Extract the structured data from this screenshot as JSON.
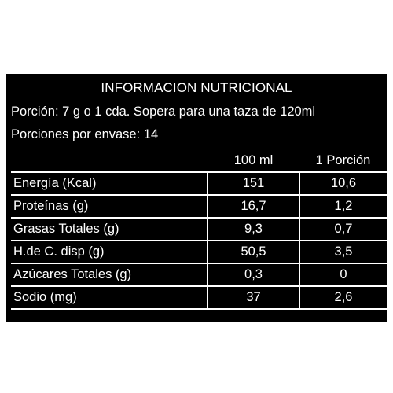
{
  "panel": {
    "title": "INFORMACION NUTRICIONAL",
    "portion_line": "Porción:  7 g o 1 cda. Sopera para una taza de 120ml",
    "servings_line": "Porciones por envase: 14"
  },
  "table": {
    "headers": [
      "",
      "100 ml",
      "1 Porción"
    ],
    "rows": [
      {
        "label": "Energía (Kcal)",
        "per100": "151",
        "perPortion": "10,6"
      },
      {
        "label": "Proteínas (g)",
        "per100": "16,7",
        "perPortion": "1,2"
      },
      {
        "label": "Grasas Totales (g)",
        "per100": "9,3",
        "perPortion": "0,7"
      },
      {
        "label": "H.de C. disp (g)",
        "per100": "50,5",
        "perPortion": "3,5"
      },
      {
        "label": "Azúcares Totales (g)",
        "per100": "0,3",
        "perPortion": "0"
      },
      {
        "label": "Sodio (mg)",
        "per100": "37",
        "perPortion": "2,6"
      }
    ]
  }
}
